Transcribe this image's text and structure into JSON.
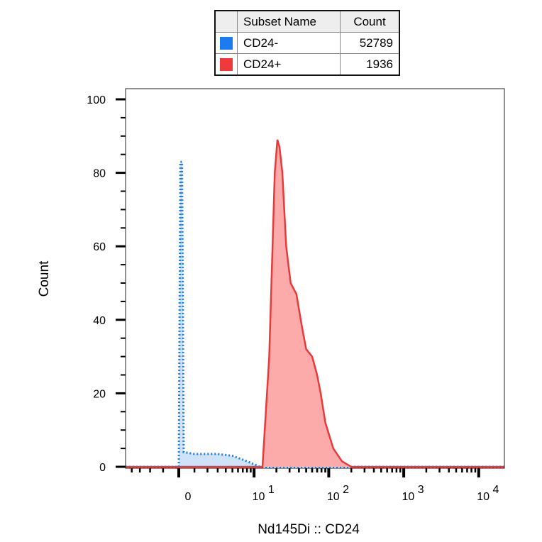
{
  "legend": {
    "headers": [
      "",
      "Subset Name",
      "Count"
    ],
    "rows": [
      {
        "name": "CD24-",
        "count": "52789",
        "color": "#1a7cf0"
      },
      {
        "name": "CD24+",
        "count": "1936",
        "color": "#f03a3a"
      }
    ]
  },
  "chart_data": {
    "type": "area",
    "title": "",
    "xlabel": "Nd145Di :: CD24",
    "ylabel": "Count",
    "x_scale": "biexponential",
    "xlim": [
      -5,
      22000
    ],
    "ylim": [
      0,
      100
    ],
    "x_ticks": [
      {
        "value": 0,
        "label": "0"
      },
      {
        "value": 10,
        "base": "10",
        "exp": "1"
      },
      {
        "value": 100,
        "base": "10",
        "exp": "2"
      },
      {
        "value": 1000,
        "base": "10",
        "exp": "3"
      },
      {
        "value": 10000,
        "base": "10",
        "exp": "4"
      }
    ],
    "y_ticks": [
      0,
      20,
      40,
      60,
      80,
      100
    ],
    "grid": false,
    "series": [
      {
        "name": "CD24-",
        "color": "#1a7cf0",
        "fill": "#cfe2f7",
        "style": "dotted",
        "points": [
          [
            -5,
            0
          ],
          [
            0,
            0
          ],
          [
            0.1,
            83
          ],
          [
            0.2,
            83
          ],
          [
            0.3,
            4
          ],
          [
            1,
            3.5
          ],
          [
            3,
            3.5
          ],
          [
            5,
            3
          ],
          [
            8,
            1.5
          ],
          [
            12,
            0
          ],
          [
            22000,
            0
          ]
        ]
      },
      {
        "name": "CD24+",
        "color": "#e83a3a",
        "fill": "#fcaaaa",
        "style": "solid",
        "points": [
          [
            -5,
            0
          ],
          [
            13,
            0
          ],
          [
            16,
            30
          ],
          [
            19,
            80
          ],
          [
            20.6,
            89
          ],
          [
            22,
            87
          ],
          [
            24,
            80
          ],
          [
            27,
            60
          ],
          [
            31,
            50
          ],
          [
            37,
            47
          ],
          [
            44,
            38
          ],
          [
            50,
            32
          ],
          [
            60,
            30
          ],
          [
            70,
            25
          ],
          [
            78,
            20
          ],
          [
            90,
            12
          ],
          [
            115,
            5
          ],
          [
            150,
            1.5
          ],
          [
            200,
            0
          ],
          [
            22000,
            0
          ]
        ]
      }
    ]
  }
}
